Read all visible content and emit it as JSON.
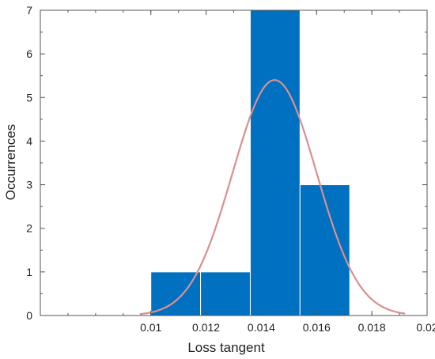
{
  "chart_data": {
    "type": "bar",
    "title": "",
    "xlabel": "Loss tangent",
    "ylabel": "Occurrences",
    "xlim": [
      0.006,
      0.02
    ],
    "ylim": [
      0,
      7
    ],
    "xticks": [
      0.01,
      0.012,
      0.014,
      0.016,
      0.018,
      0.02
    ],
    "xtick_labels": [
      "0.01",
      "0.012",
      "0.014",
      "0.016",
      "0.018",
      "0.02"
    ],
    "yticks": [
      0,
      1,
      2,
      3,
      4,
      5,
      6,
      7
    ],
    "ytick_labels": [
      "0",
      "1",
      "2",
      "3",
      "4",
      "5",
      "6",
      "7"
    ],
    "grid": false,
    "bins": [
      {
        "x0": 0.01,
        "x1": 0.0118,
        "count": 1
      },
      {
        "x0": 0.0118,
        "x1": 0.0136,
        "count": 1
      },
      {
        "x0": 0.0136,
        "x1": 0.0154,
        "count": 7
      },
      {
        "x0": 0.0154,
        "x1": 0.0172,
        "count": 3
      }
    ],
    "fit_curve": {
      "type": "normal",
      "mean": 0.01448,
      "sd": 0.00152,
      "peak": 5.4,
      "x_start": 0.0096,
      "x_end": 0.0192
    },
    "colors": {
      "bar": "#0070c0",
      "bar_edge": "#ffffff",
      "fit": "#d9908f",
      "axis": "#555555"
    }
  }
}
